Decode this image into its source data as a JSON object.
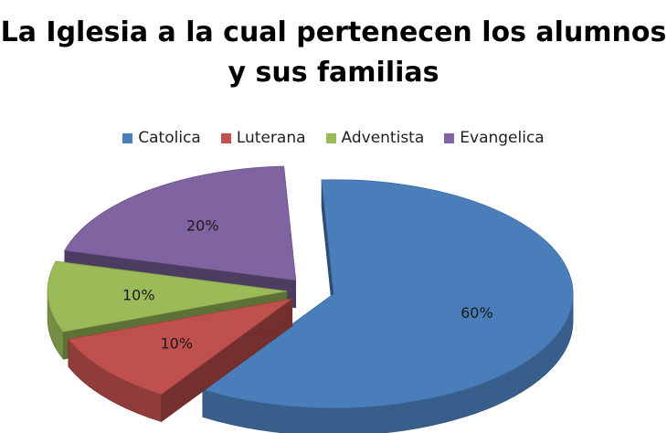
{
  "chart_data": {
    "type": "pie",
    "title": "La Iglesia a la cual pertenecen los alumnos y sus familias",
    "legend_position": "top",
    "categories": [
      "Catolica",
      "Luterana",
      "Adventista",
      "Evangelica"
    ],
    "values": [
      60,
      10,
      10,
      20
    ],
    "value_labels": [
      "60%",
      "10%",
      "10%",
      "20%"
    ],
    "colors": [
      "#4A7EBB",
      "#C0504D",
      "#9BBB59",
      "#8064A2"
    ],
    "exploded": true,
    "three_d": true
  }
}
